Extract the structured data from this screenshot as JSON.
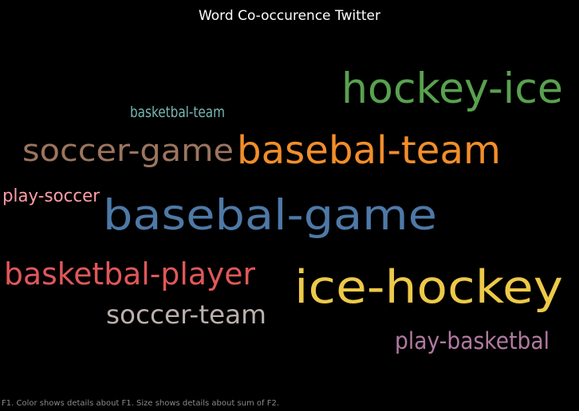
{
  "chart_data": {
    "type": "word_cloud",
    "title": "Word Co-occurence Twitter",
    "footnote": "F1.  Color shows details about F1.  Size shows details about sum of F2.",
    "words": [
      {
        "text": "hockey-ice",
        "color": "#59a14f",
        "weight": 9
      },
      {
        "text": "basketbal-team",
        "color": "#76b7b2",
        "weight": 1
      },
      {
        "text": "soccer-game",
        "color": "#9c755f",
        "weight": 6
      },
      {
        "text": "basebal-team",
        "color": "#f28e2b",
        "weight": 8
      },
      {
        "text": "play-soccer",
        "color": "#ff9da7",
        "weight": 2
      },
      {
        "text": "basebal-game",
        "color": "#4e79a7",
        "weight": 10
      },
      {
        "text": "basketbal-player",
        "color": "#e15759",
        "weight": 7
      },
      {
        "text": "ice-hockey",
        "color": "#edc948",
        "weight": 11
      },
      {
        "text": "soccer-team",
        "color": "#bab0ac",
        "weight": 5
      },
      {
        "text": "play-basketbal",
        "color": "#b07aa1",
        "weight": 3
      }
    ]
  }
}
